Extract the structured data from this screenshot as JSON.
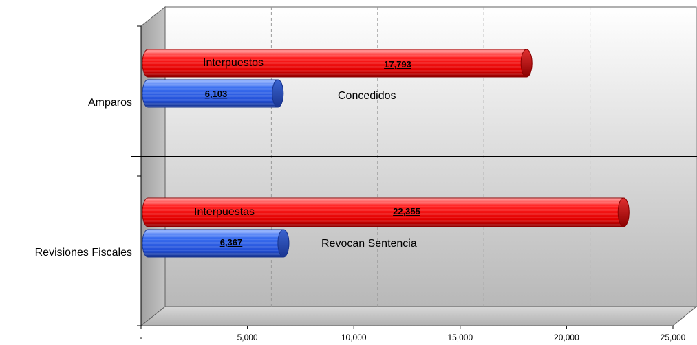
{
  "chart_data": {
    "type": "bar",
    "orientation": "horizontal",
    "categories": [
      "Amparos",
      "Revisiones Fiscales"
    ],
    "series": [
      {
        "values": [
          17793,
          22355
        ],
        "color": "#ee1111"
      },
      {
        "values": [
          6103,
          6367
        ],
        "color": "#2a5ee8"
      }
    ],
    "value_labels": [
      [
        "17,793",
        "22,355"
      ],
      [
        "6,103",
        "6,367"
      ]
    ],
    "bar_annotations": [
      [
        "Interpuestos",
        "Interpuestas"
      ],
      [
        "Concedidos",
        "Revocan Sentencia"
      ]
    ],
    "x_ticks": [
      {
        "value": 0,
        "label": "-"
      },
      {
        "value": 5000,
        "label": "5,000"
      },
      {
        "value": 10000,
        "label": "10,000"
      },
      {
        "value": 15000,
        "label": "15,000"
      },
      {
        "value": 20000,
        "label": "20,000"
      },
      {
        "value": 25000,
        "label": "25,000"
      }
    ],
    "xlim": [
      0,
      25000
    ],
    "grid": "vertical-dashed",
    "style": "3d-cylinder",
    "title": "",
    "xlabel": "",
    "ylabel": ""
  }
}
